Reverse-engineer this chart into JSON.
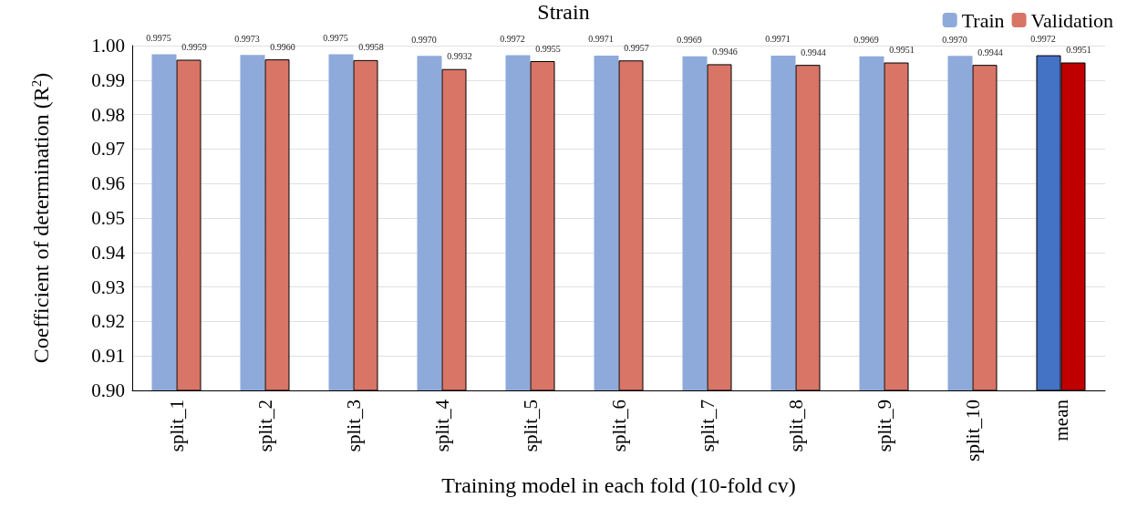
{
  "chart_data": {
    "type": "bar",
    "title": "Strain",
    "xlabel": "Training model in each fold (10-fold cv)",
    "ylabel": "Coefficient of determination (R$^{2}$)",
    "categories": [
      "split_1",
      "split_2",
      "split_3",
      "split_4",
      "split_5",
      "split_6",
      "split_7",
      "split_8",
      "split_9",
      "split_10",
      "mean"
    ],
    "series": [
      {
        "name": "Train",
        "color": "#8eaadb",
        "colors": [
          "#8eaadb",
          "#8eaadb",
          "#8eaadb",
          "#8eaadb",
          "#8eaadb",
          "#8eaadb",
          "#8eaadb",
          "#8eaadb",
          "#8eaadb",
          "#8eaadb",
          "#4472c4"
        ],
        "values": [
          0.9975,
          0.9973,
          0.9975,
          0.997,
          0.9972,
          0.9971,
          0.9969,
          0.9971,
          0.9969,
          0.997,
          0.9972
        ],
        "value_labels": [
          "0.9975",
          "0.9973",
          "0.9975",
          "0.9970",
          "0.9972",
          "0.9971",
          "0.9969",
          "0.9971",
          "0.9969",
          "0.9970",
          "0.9972"
        ]
      },
      {
        "name": "Validation",
        "color": "#d87566",
        "colors": [
          "#d87566",
          "#d87566",
          "#d87566",
          "#d87566",
          "#d87566",
          "#d87566",
          "#d87566",
          "#d87566",
          "#d87566",
          "#d87566",
          "#c00000"
        ],
        "values": [
          0.9959,
          0.996,
          0.9958,
          0.9932,
          0.9955,
          0.9957,
          0.9946,
          0.9944,
          0.9951,
          0.9944,
          0.9951
        ],
        "value_labels": [
          "0.9959",
          "0.9960",
          "0.9958",
          "0.9932",
          "0.9955",
          "0.9957",
          "0.9946",
          "0.9944",
          "0.9951",
          "0.9944",
          "0.9951"
        ]
      }
    ],
    "ylim": [
      0.9,
      1.0
    ],
    "yticks": [
      {
        "value": 0.9,
        "label": "0.90"
      },
      0.91,
      0.92,
      0.93,
      0.94,
      0.95,
      0.96,
      0.97,
      0.98,
      0.99,
      {
        "value": 1.0,
        "label": "1.00"
      }
    ],
    "grid": "y",
    "legend": "top right"
  }
}
